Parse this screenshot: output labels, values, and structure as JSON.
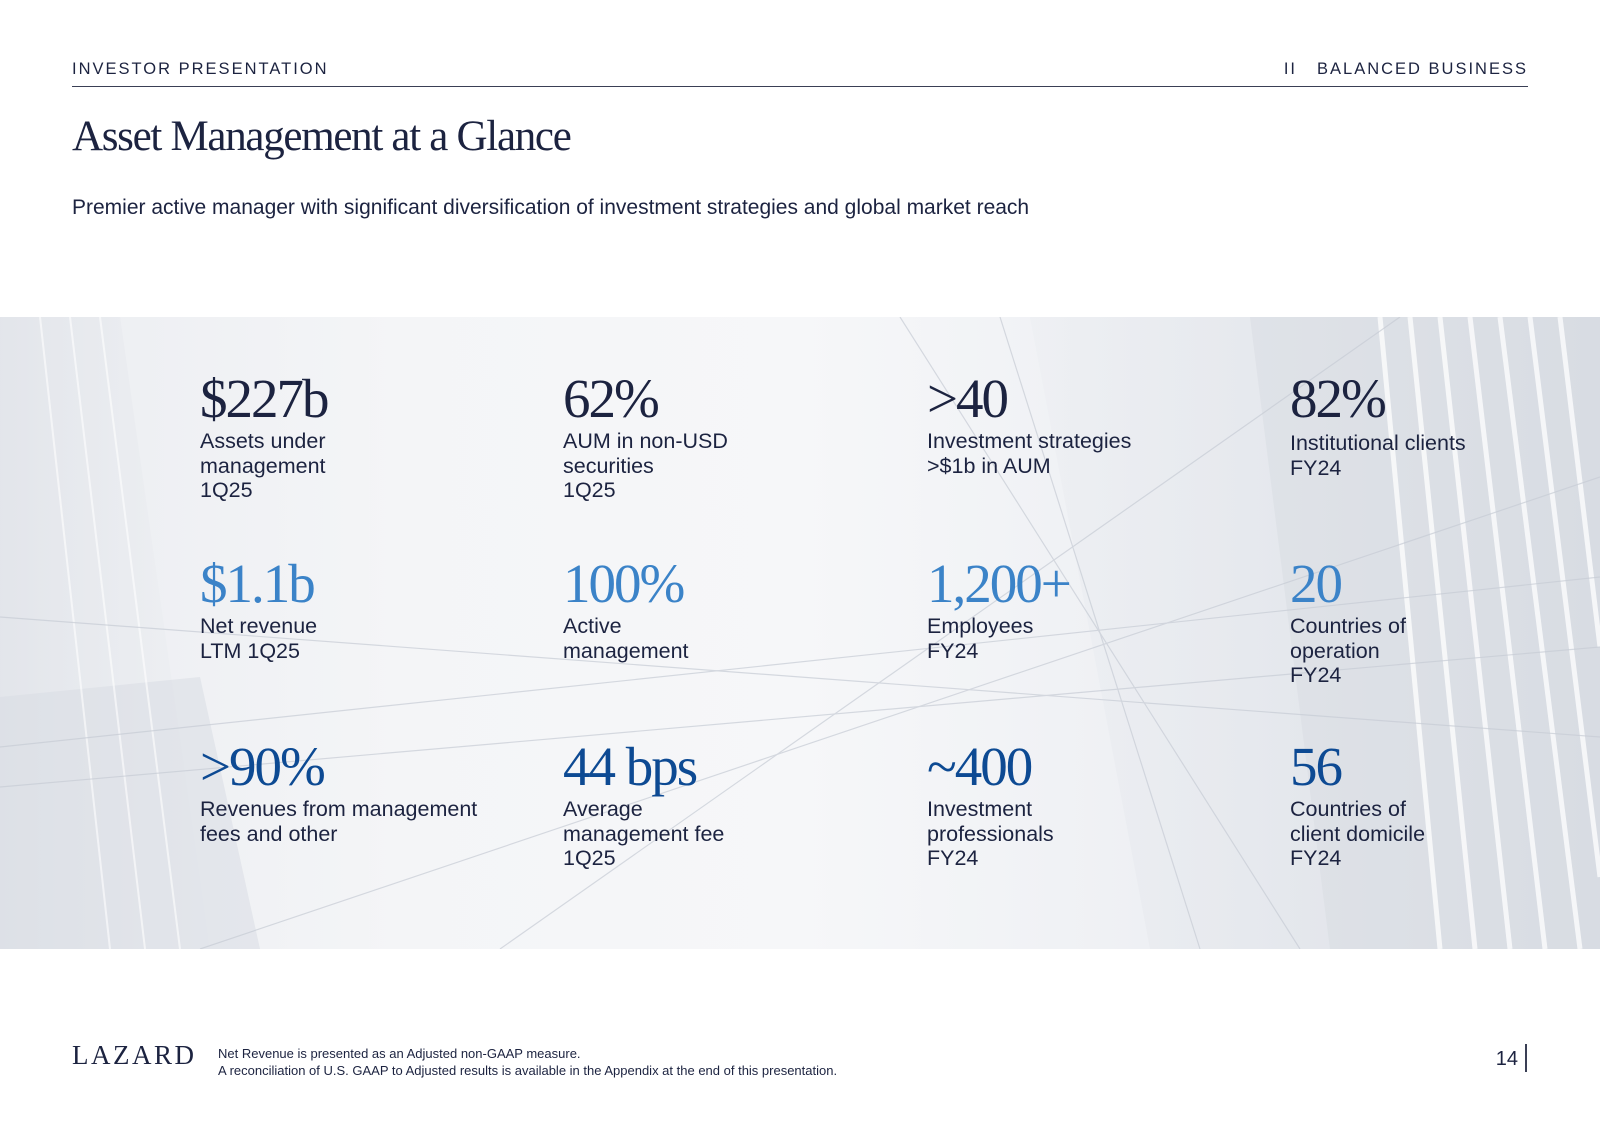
{
  "header": {
    "left": "INVESTOR PRESENTATION",
    "section_num": "II",
    "section_title": "BALANCED BUSINESS"
  },
  "title": "Asset Management at a Glance",
  "subtitle": "Premier active manager with significant diversification of investment strategies and global market reach",
  "stats": [
    {
      "value": "$227b",
      "label": [
        "Assets under",
        "management",
        "1Q25"
      ]
    },
    {
      "value": "62%",
      "label": [
        "AUM in non-USD",
        "securities",
        "1Q25"
      ]
    },
    {
      "value": ">40",
      "label": [
        "Investment strategies",
        ">$1b in AUM"
      ]
    },
    {
      "value": "82%",
      "label": [
        "Institutional clients",
        "FY24"
      ]
    },
    {
      "value": "$1.1b",
      "label": [
        "Net revenue",
        "LTM 1Q25"
      ]
    },
    {
      "value": "100%",
      "label": [
        "Active",
        "management"
      ]
    },
    {
      "value": "1,200+",
      "label": [
        "Employees",
        "FY24"
      ]
    },
    {
      "value": "20",
      "label": [
        "Countries of",
        "operation",
        "FY24"
      ]
    },
    {
      "value": ">90%",
      "label": [
        "Revenues from management",
        "fees and other"
      ]
    },
    {
      "value": "44 bps",
      "label": [
        "Average",
        "management fee",
        "1Q25"
      ]
    },
    {
      "value": "~400",
      "label": [
        "Investment",
        "professionals",
        "FY24"
      ]
    },
    {
      "value": "56",
      "label": [
        "Countries of",
        "client domicile",
        "FY24"
      ]
    }
  ],
  "colors": {
    "navy": "#1c2340",
    "light_blue": "#3b83c8",
    "blue": "#0d4a93"
  },
  "footer": {
    "logo": "LAZARD",
    "note_line1": "Net Revenue is presented as an Adjusted non-GAAP measure.",
    "note_line2": "A reconciliation of U.S. GAAP to Adjusted results is available in the Appendix at the end of this presentation.",
    "page_number": "14"
  }
}
